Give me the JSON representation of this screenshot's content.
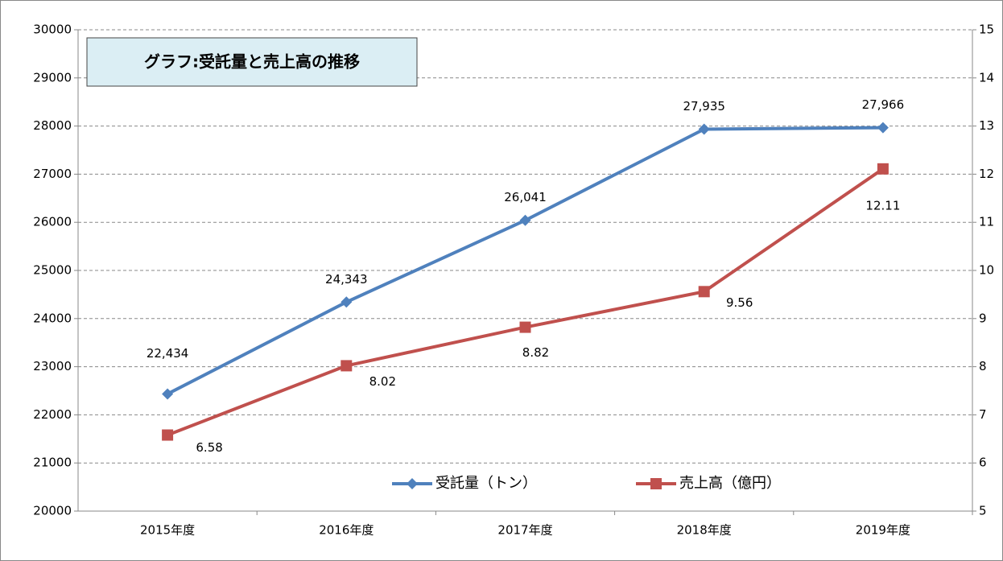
{
  "chart_data": {
    "type": "line",
    "title": "グラフ:受託量と売上高の推移",
    "categories": [
      "2015年度",
      "2016年度",
      "2017年度",
      "2018年度",
      "2019年度"
    ],
    "series": [
      {
        "name": "受託量（トン）",
        "color": "#4f81bd",
        "values": [
          22434,
          24343,
          26041,
          27935,
          27966
        ],
        "value_labels": [
          "22,434",
          "24,343",
          "26,041",
          "27,935",
          "27,966"
        ]
      },
      {
        "name": "売上高（億円）",
        "color": "#c0504d",
        "axis": "y2",
        "values": [
          6.58,
          8.02,
          8.82,
          9.56,
          12.11
        ]
      }
    ],
    "ylim": [
      20000,
      30000
    ],
    "yticks": [
      20000,
      21000,
      22000,
      23000,
      24000,
      25000,
      26000,
      27000,
      28000,
      29000,
      30000
    ],
    "y2lim": [
      5,
      15
    ],
    "y2ticks": [
      5,
      6,
      7,
      8,
      9,
      10,
      11,
      12,
      13,
      14,
      15
    ],
    "grid": true
  }
}
